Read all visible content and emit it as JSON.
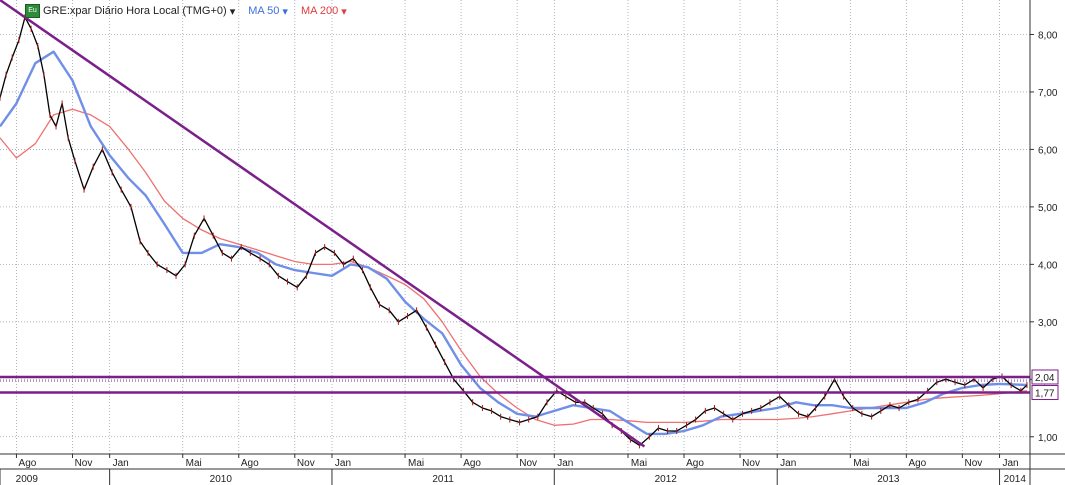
{
  "header": {
    "badge": "Eu",
    "symbol_label": "GRE:xpar Diário Hora Local (TMG+0)",
    "symbol_arrow": "▾",
    "ma50_label": "MA 50",
    "ma50_arrow": "▾",
    "ma200_label": "MA 200",
    "ma200_arrow": "▾"
  },
  "colors": {
    "price": "#000000",
    "ma50": "#6f8fe8",
    "ma200": "#f07070",
    "trend": "#7b1f8a",
    "grid": "#9aa6b5",
    "frame": "#333333"
  },
  "chart_data": {
    "type": "line",
    "title": "GRE:xpar Diário Hora Local (TMG+0)",
    "ylim": [
      0.7,
      8.6
    ],
    "xlim": [
      "2009-07-05",
      "2014-02-20"
    ],
    "y_ticks": [
      "1,00",
      "2,00",
      "3,00",
      "4,00",
      "5,00",
      "6,00",
      "7,00",
      "8,00"
    ],
    "x_month_ticks": [
      {
        "label": "Ago",
        "date": "2009-08-01"
      },
      {
        "label": "Nov",
        "date": "2009-11-01"
      },
      {
        "label": "Jan",
        "date": "2010-01-01"
      },
      {
        "label": "Mai",
        "date": "2010-05-01"
      },
      {
        "label": "Ago",
        "date": "2010-08-01"
      },
      {
        "label": "Nov",
        "date": "2010-11-01"
      },
      {
        "label": "Jan",
        "date": "2011-01-01"
      },
      {
        "label": "Mai",
        "date": "2011-05-01"
      },
      {
        "label": "Ago",
        "date": "2011-08-01"
      },
      {
        "label": "Nov",
        "date": "2011-11-01"
      },
      {
        "label": "Jan",
        "date": "2012-01-01"
      },
      {
        "label": "Mai",
        "date": "2012-05-01"
      },
      {
        "label": "Ago",
        "date": "2012-08-01"
      },
      {
        "label": "Nov",
        "date": "2012-11-01"
      },
      {
        "label": "Jan",
        "date": "2013-01-01"
      },
      {
        "label": "Mai",
        "date": "2013-05-01"
      },
      {
        "label": "Ago",
        "date": "2013-08-01"
      },
      {
        "label": "Nov",
        "date": "2013-11-01"
      },
      {
        "label": "Jan",
        "date": "2014-01-01"
      }
    ],
    "x_year_ticks": [
      {
        "label": "2009",
        "from": "2009-07-05",
        "to": "2009-10-01"
      },
      {
        "label": "2010",
        "from": "2010-01-01",
        "to": "2011-01-01"
      },
      {
        "label": "2011",
        "from": "2011-01-01",
        "to": "2012-01-01"
      },
      {
        "label": "2012",
        "from": "2012-01-01",
        "to": "2013-01-01"
      },
      {
        "label": "2013",
        "from": "2013-01-01",
        "to": "2014-01-01"
      },
      {
        "label": "2014",
        "from": "2014-01-01",
        "to": "2014-02-20"
      }
    ],
    "series": [
      {
        "name": "GRE:xpar",
        "kind": "price",
        "x": [
          "2009-07-05",
          "2009-07-15",
          "2009-07-25",
          "2009-08-05",
          "2009-08-15",
          "2009-08-25",
          "2009-09-05",
          "2009-09-15",
          "2009-09-25",
          "2009-10-05",
          "2009-10-15",
          "2009-10-25",
          "2009-11-05",
          "2009-11-20",
          "2009-12-05",
          "2009-12-20",
          "2010-01-05",
          "2010-01-20",
          "2010-02-05",
          "2010-02-20",
          "2010-03-05",
          "2010-03-20",
          "2010-04-05",
          "2010-04-20",
          "2010-05-05",
          "2010-05-20",
          "2010-06-05",
          "2010-06-20",
          "2010-07-05",
          "2010-07-20",
          "2010-08-05",
          "2010-08-20",
          "2010-09-05",
          "2010-09-20",
          "2010-10-05",
          "2010-10-20",
          "2010-11-05",
          "2010-11-20",
          "2010-12-05",
          "2010-12-20",
          "2011-01-05",
          "2011-01-20",
          "2011-02-05",
          "2011-02-20",
          "2011-03-05",
          "2011-03-20",
          "2011-04-05",
          "2011-04-20",
          "2011-05-05",
          "2011-05-20",
          "2011-06-05",
          "2011-06-20",
          "2011-07-05",
          "2011-07-20",
          "2011-08-05",
          "2011-08-20",
          "2011-09-05",
          "2011-09-20",
          "2011-10-05",
          "2011-10-20",
          "2011-11-05",
          "2011-11-20",
          "2011-12-05",
          "2011-12-20",
          "2012-01-05",
          "2012-01-20",
          "2012-02-05",
          "2012-02-20",
          "2012-03-05",
          "2012-03-20",
          "2012-04-05",
          "2012-04-20",
          "2012-05-05",
          "2012-05-20",
          "2012-06-05",
          "2012-06-20",
          "2012-07-05",
          "2012-07-20",
          "2012-08-05",
          "2012-08-20",
          "2012-09-05",
          "2012-09-20",
          "2012-10-05",
          "2012-10-20",
          "2012-11-05",
          "2012-11-20",
          "2012-12-05",
          "2012-12-20",
          "2013-01-05",
          "2013-01-20",
          "2013-02-05",
          "2013-02-20",
          "2013-03-05",
          "2013-03-20",
          "2013-04-05",
          "2013-04-20",
          "2013-05-05",
          "2013-05-20",
          "2013-06-05",
          "2013-06-20",
          "2013-07-05",
          "2013-07-20",
          "2013-08-05",
          "2013-08-20",
          "2013-09-05",
          "2013-09-20",
          "2013-10-05",
          "2013-10-20",
          "2013-11-05",
          "2013-11-20",
          "2013-12-05",
          "2013-12-20",
          "2014-01-05",
          "2014-01-20",
          "2014-02-05",
          "2014-02-15"
        ],
        "values": [
          6.9,
          7.3,
          7.6,
          7.9,
          8.3,
          8.1,
          7.8,
          7.3,
          6.6,
          6.4,
          6.8,
          6.2,
          5.8,
          5.3,
          5.7,
          6.0,
          5.6,
          5.3,
          5.0,
          4.4,
          4.2,
          4.0,
          3.9,
          3.8,
          4.0,
          4.5,
          4.8,
          4.5,
          4.2,
          4.1,
          4.3,
          4.2,
          4.1,
          4.0,
          3.8,
          3.7,
          3.6,
          3.8,
          4.2,
          4.3,
          4.2,
          4.0,
          4.1,
          3.9,
          3.6,
          3.3,
          3.2,
          3.0,
          3.1,
          3.2,
          2.9,
          2.6,
          2.3,
          2.0,
          1.8,
          1.6,
          1.5,
          1.45,
          1.35,
          1.3,
          1.25,
          1.3,
          1.35,
          1.6,
          1.8,
          1.7,
          1.6,
          1.6,
          1.5,
          1.4,
          1.2,
          1.1,
          0.95,
          0.85,
          1.0,
          1.15,
          1.1,
          1.1,
          1.2,
          1.3,
          1.45,
          1.5,
          1.4,
          1.3,
          1.4,
          1.45,
          1.5,
          1.6,
          1.7,
          1.55,
          1.4,
          1.35,
          1.5,
          1.7,
          2.0,
          1.7,
          1.5,
          1.4,
          1.35,
          1.45,
          1.55,
          1.5,
          1.6,
          1.65,
          1.8,
          1.95,
          2.0,
          1.95,
          1.9,
          2.0,
          1.85,
          2.0,
          2.05,
          1.9,
          1.8,
          1.9
        ]
      },
      {
        "name": "MA 50",
        "kind": "ma50",
        "x": [
          "2009-07-05",
          "2009-08-01",
          "2009-09-01",
          "2009-10-01",
          "2009-11-01",
          "2009-12-01",
          "2010-01-01",
          "2010-02-01",
          "2010-03-01",
          "2010-04-01",
          "2010-05-01",
          "2010-06-01",
          "2010-07-01",
          "2010-08-01",
          "2010-09-01",
          "2010-10-01",
          "2010-11-01",
          "2010-12-01",
          "2011-01-01",
          "2011-02-01",
          "2011-03-01",
          "2011-04-01",
          "2011-05-01",
          "2011-06-01",
          "2011-07-01",
          "2011-08-01",
          "2011-09-01",
          "2011-10-01",
          "2011-11-01",
          "2011-12-01",
          "2012-01-01",
          "2012-02-01",
          "2012-03-01",
          "2012-04-01",
          "2012-05-01",
          "2012-06-01",
          "2012-07-01",
          "2012-08-01",
          "2012-09-01",
          "2012-10-01",
          "2012-11-01",
          "2012-12-01",
          "2013-01-01",
          "2013-02-01",
          "2013-03-01",
          "2013-04-01",
          "2013-05-01",
          "2013-06-01",
          "2013-07-01",
          "2013-08-01",
          "2013-09-01",
          "2013-10-01",
          "2013-11-01",
          "2013-12-01",
          "2014-01-01",
          "2014-02-15"
        ],
        "values": [
          6.4,
          6.8,
          7.5,
          7.7,
          7.2,
          6.4,
          5.9,
          5.5,
          5.2,
          4.7,
          4.2,
          4.2,
          4.35,
          4.3,
          4.2,
          4.0,
          3.9,
          3.85,
          3.8,
          4.0,
          3.95,
          3.75,
          3.35,
          3.05,
          2.8,
          2.25,
          1.85,
          1.6,
          1.4,
          1.35,
          1.45,
          1.55,
          1.5,
          1.45,
          1.25,
          1.05,
          1.05,
          1.1,
          1.2,
          1.35,
          1.4,
          1.45,
          1.5,
          1.6,
          1.55,
          1.55,
          1.5,
          1.5,
          1.5,
          1.5,
          1.6,
          1.75,
          1.85,
          1.9,
          1.92,
          1.9
        ]
      },
      {
        "name": "MA 200",
        "kind": "ma200",
        "x": [
          "2009-07-05",
          "2009-08-01",
          "2009-09-01",
          "2009-10-01",
          "2009-11-01",
          "2009-12-01",
          "2010-01-01",
          "2010-02-01",
          "2010-03-01",
          "2010-04-01",
          "2010-05-01",
          "2010-06-01",
          "2010-07-01",
          "2010-08-01",
          "2010-09-01",
          "2010-10-01",
          "2010-11-01",
          "2010-12-01",
          "2011-01-01",
          "2011-02-01",
          "2011-03-01",
          "2011-04-01",
          "2011-05-01",
          "2011-06-01",
          "2011-07-01",
          "2011-08-01",
          "2011-09-01",
          "2011-10-01",
          "2011-11-01",
          "2011-12-01",
          "2012-01-01",
          "2012-02-01",
          "2012-03-01",
          "2012-04-01",
          "2012-05-01",
          "2012-06-01",
          "2012-07-01",
          "2012-08-01",
          "2012-09-01",
          "2012-10-01",
          "2012-11-01",
          "2012-12-01",
          "2013-01-01",
          "2013-02-01",
          "2013-03-01",
          "2013-04-01",
          "2013-05-01",
          "2013-06-01",
          "2013-07-01",
          "2013-08-01",
          "2013-09-01",
          "2013-10-01",
          "2013-11-01",
          "2013-12-01",
          "2014-01-01",
          "2014-02-15"
        ],
        "values": [
          6.2,
          5.85,
          6.1,
          6.6,
          6.7,
          6.6,
          6.4,
          6.0,
          5.6,
          5.1,
          4.8,
          4.6,
          4.45,
          4.35,
          4.25,
          4.15,
          4.05,
          4.0,
          4.0,
          4.05,
          3.95,
          3.8,
          3.65,
          3.4,
          3.0,
          2.5,
          2.05,
          1.75,
          1.5,
          1.3,
          1.2,
          1.22,
          1.3,
          1.3,
          1.28,
          1.25,
          1.25,
          1.25,
          1.27,
          1.3,
          1.3,
          1.3,
          1.3,
          1.32,
          1.35,
          1.4,
          1.45,
          1.5,
          1.55,
          1.6,
          1.65,
          1.68,
          1.7,
          1.72,
          1.75,
          1.8
        ]
      }
    ],
    "trendline": {
      "x": [
        "2009-07-05",
        "2012-05-28"
      ],
      "y": [
        8.6,
        0.83
      ]
    },
    "horizontal_lines": [
      2.04,
      1.77
    ],
    "price_markers": [
      {
        "label": "2,04",
        "value": 2.04
      },
      {
        "label": "1,77",
        "value": 1.77
      }
    ]
  }
}
